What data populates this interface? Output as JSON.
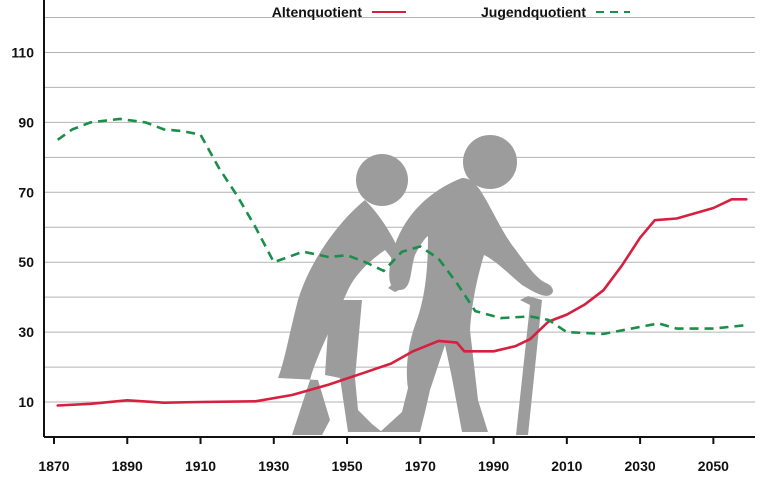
{
  "chart_data": {
    "type": "line",
    "title": "",
    "xlabel": "",
    "ylabel": "",
    "xlim": [
      1870,
      2060
    ],
    "ylim": [
      0,
      125
    ],
    "x_ticks": [
      1870,
      1890,
      1910,
      1930,
      1950,
      1970,
      1990,
      2010,
      2030,
      2050
    ],
    "y_ticks": [
      10,
      30,
      50,
      70,
      90,
      110
    ],
    "grid": true,
    "legend_position": "top",
    "series": [
      {
        "name": "Altenquotient",
        "color": "#d6203f",
        "dash": "solid",
        "points": [
          [
            1871,
            9
          ],
          [
            1880,
            9.5
          ],
          [
            1890,
            10.5
          ],
          [
            1900,
            9.8
          ],
          [
            1910,
            10
          ],
          [
            1925,
            10.2
          ],
          [
            1935,
            12
          ],
          [
            1945,
            15
          ],
          [
            1955,
            18.5
          ],
          [
            1962,
            21
          ],
          [
            1968,
            24.5
          ],
          [
            1975,
            27.5
          ],
          [
            1980,
            27
          ],
          [
            1982,
            24.5
          ],
          [
            1990,
            24.5
          ],
          [
            1996,
            26
          ],
          [
            2000,
            28
          ],
          [
            2005,
            33
          ],
          [
            2010,
            35
          ],
          [
            2015,
            38
          ],
          [
            2020,
            42
          ],
          [
            2025,
            49
          ],
          [
            2030,
            57
          ],
          [
            2034,
            62
          ],
          [
            2040,
            62.5
          ],
          [
            2045,
            64
          ],
          [
            2050,
            65.5
          ],
          [
            2055,
            68
          ],
          [
            2059,
            68
          ]
        ]
      },
      {
        "name": "Jugendquotient",
        "color": "#1a8f4a",
        "dash": "dashed",
        "points": [
          [
            1871,
            85
          ],
          [
            1875,
            88
          ],
          [
            1880,
            90
          ],
          [
            1888,
            91
          ],
          [
            1895,
            90
          ],
          [
            1900,
            88
          ],
          [
            1905,
            87.5
          ],
          [
            1910,
            86.5
          ],
          [
            1915,
            77
          ],
          [
            1920,
            69
          ],
          [
            1925,
            60
          ],
          [
            1930,
            50
          ],
          [
            1938,
            53
          ],
          [
            1945,
            51.5
          ],
          [
            1950,
            52
          ],
          [
            1955,
            50
          ],
          [
            1960,
            47.5
          ],
          [
            1965,
            53
          ],
          [
            1970,
            54.5
          ],
          [
            1975,
            51
          ],
          [
            1980,
            44
          ],
          [
            1985,
            36
          ],
          [
            1992,
            34
          ],
          [
            2000,
            34.5
          ],
          [
            2005,
            33.5
          ],
          [
            2010,
            30
          ],
          [
            2020,
            29.5
          ],
          [
            2030,
            31.5
          ],
          [
            2035,
            32.5
          ],
          [
            2040,
            31
          ],
          [
            2050,
            31
          ],
          [
            2059,
            32
          ]
        ]
      }
    ]
  },
  "colors": {
    "grid": "#b3b3b3",
    "axis": "#111111",
    "silhouette": "#9c9c9c",
    "background": "#ffffff"
  },
  "illustration": "elderly-couple-silhouette"
}
